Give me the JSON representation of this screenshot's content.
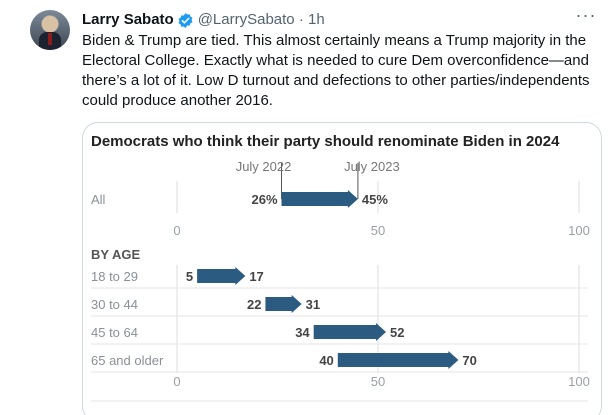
{
  "tweet": {
    "author_name": "Larry Sabato",
    "handle_time": "@LarrySabato · 1h",
    "more_icon": "···",
    "text": "Biden & Trump are tied. This almost certainly means a Trump majority in the Electoral College. Exactly what is needed to cure Dem overconfidence—and there’s a lot of it. Low D turnout and defections to other parties/independents could produce another 2016."
  },
  "colors": {
    "arrow": "#2c5b82",
    "verified": "#1d9bf0"
  },
  "chart_data": {
    "type": "bar",
    "title": "Democrats who think their party should renominate Biden in 2024",
    "marker_labels": [
      "July 2022",
      "July 2023"
    ],
    "xlim": [
      0,
      100
    ],
    "xticks": [
      "0",
      "50",
      "100"
    ],
    "all": {
      "label": "All",
      "start": 26,
      "end": 45,
      "start_label": "26%",
      "end_label": "45%"
    },
    "section_label": "BY AGE",
    "series": [
      {
        "name": "18 to 29",
        "start": 5,
        "end": 17,
        "start_label": "5",
        "end_label": "17"
      },
      {
        "name": "30 to 44",
        "start": 22,
        "end": 31,
        "start_label": "22",
        "end_label": "31"
      },
      {
        "name": "45 to 64",
        "start": 34,
        "end": 52,
        "start_label": "34",
        "end_label": "52"
      },
      {
        "name": "65 and older",
        "start": 40,
        "end": 70,
        "start_label": "40",
        "end_label": "70"
      }
    ]
  }
}
